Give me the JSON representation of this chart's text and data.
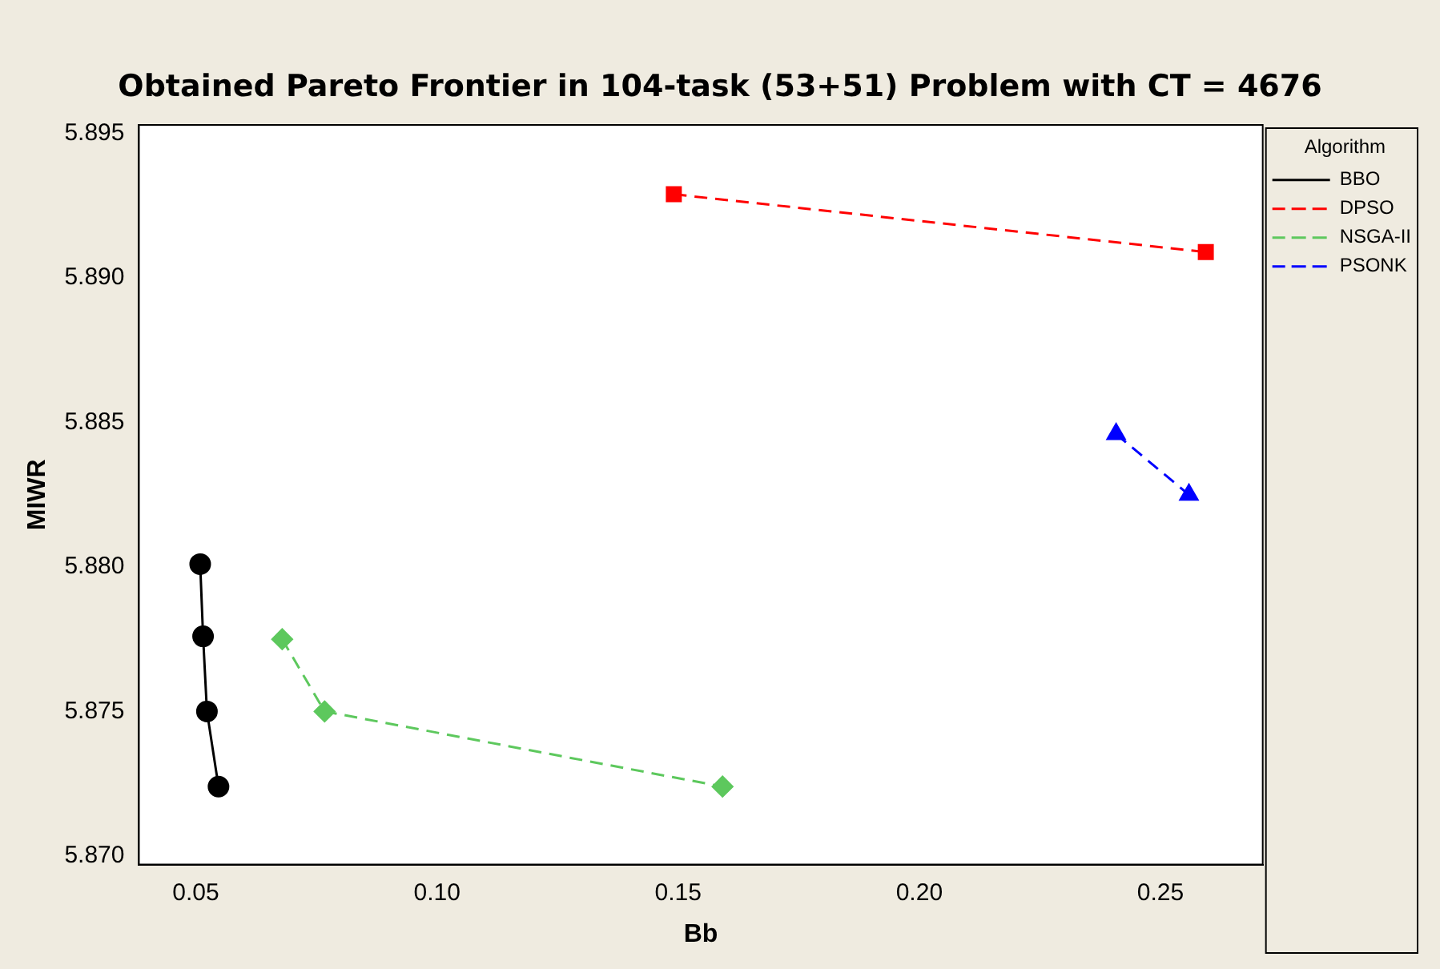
{
  "chart_data": {
    "type": "line",
    "title": "Obtained Pareto Frontier in 104-task (53+51) Problem with CT = 4676",
    "xlabel": "Bb",
    "ylabel": "MIWR",
    "legend_title": "Algorithm",
    "legend": "right",
    "grid": false,
    "xlim": [
      0.0382,
      0.2712
    ],
    "xticks": [
      {
        "value": 0.05,
        "label": "0.05"
      },
      {
        "value": 0.1,
        "label": "0.10"
      },
      {
        "value": 0.15,
        "label": "0.15"
      },
      {
        "value": 0.2,
        "label": "0.20"
      },
      {
        "value": 0.25,
        "label": "0.25"
      }
    ],
    "ylim": [
      5.8697,
      5.8953
    ],
    "yticks": [
      {
        "value": 5.87,
        "label": "5.870"
      },
      {
        "value": 5.875,
        "label": "5.875"
      },
      {
        "value": 5.88,
        "label": "5.880"
      },
      {
        "value": 5.885,
        "label": "5.885"
      },
      {
        "value": 5.89,
        "label": "5.890"
      },
      {
        "value": 5.895,
        "label": "5.895"
      }
    ],
    "series": [
      {
        "name": "BBO",
        "color": "#000000",
        "marker": "circle",
        "line_style": "solid",
        "x": [
          0.0509,
          0.0515,
          0.0523,
          0.0547
        ],
        "values": [
          5.8801,
          5.8776,
          5.875,
          5.8724
        ]
      },
      {
        "name": "DPSO",
        "color": "#ff0000",
        "marker": "square",
        "line_style": "dashed",
        "x": [
          0.1491,
          0.2594
        ],
        "values": [
          5.8929,
          5.8909
        ]
      },
      {
        "name": "NSGA-II",
        "color": "#5dc85d",
        "marker": "diamond",
        "line_style": "dashed",
        "x": [
          0.0679,
          0.0767,
          0.1592
        ],
        "values": [
          5.8775,
          5.875,
          5.8724
        ]
      },
      {
        "name": "PSONK",
        "color": "#0000ff",
        "marker": "triangle",
        "line_style": "dashed",
        "x": [
          0.2408,
          0.2559
        ],
        "values": [
          5.8846,
          5.8825
        ]
      }
    ]
  }
}
